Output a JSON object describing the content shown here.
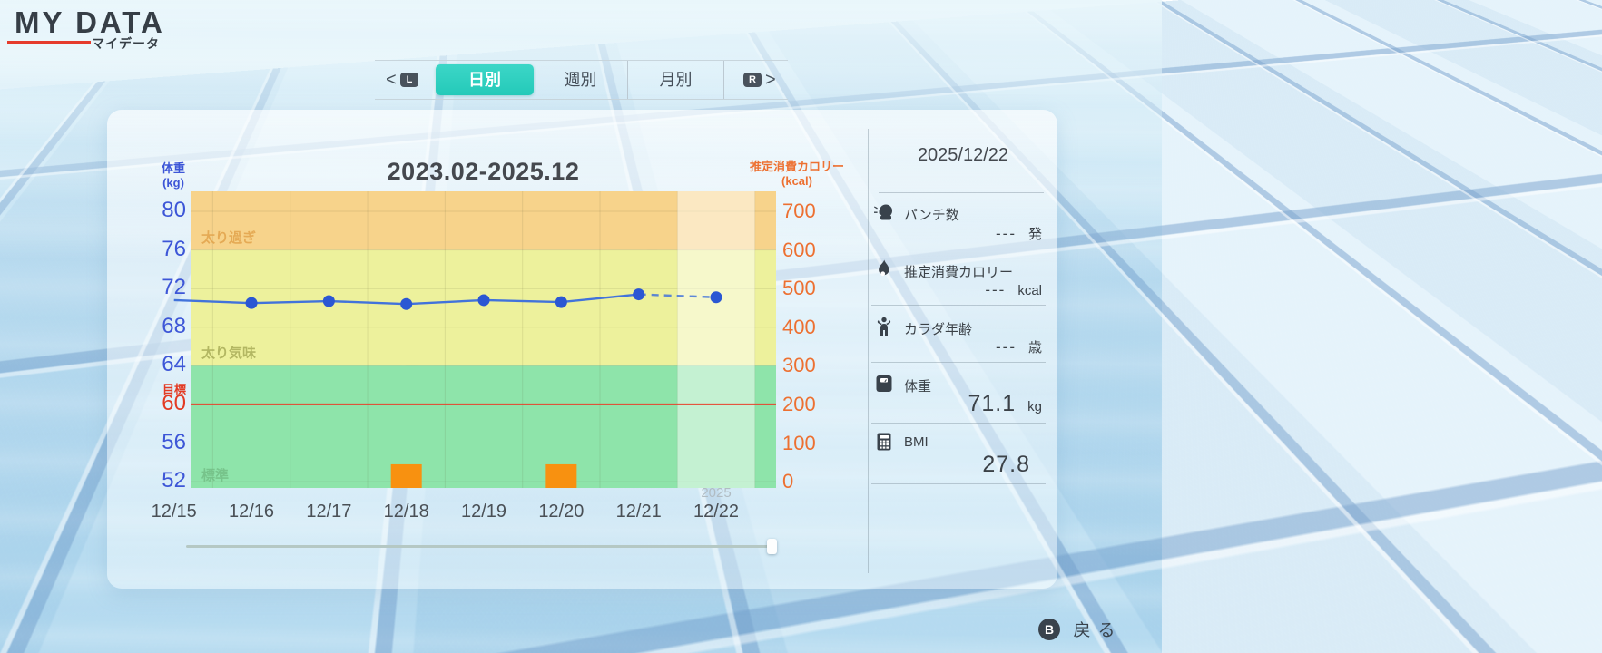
{
  "header": {
    "title": "MY DATA",
    "subtitle": "マイデータ"
  },
  "tab_bar": {
    "prev_arrow": "<",
    "l_button": "L",
    "tabs": [
      {
        "label": "日別",
        "selected": true
      },
      {
        "label": "週別",
        "selected": false
      },
      {
        "label": "月別",
        "selected": false
      }
    ],
    "r_button": "R",
    "next_arrow": ">"
  },
  "chart_data": {
    "type": "line",
    "title": "2023.02-2025.12",
    "left_axis": {
      "title": "体重",
      "unit": "(kg)",
      "ticks": [
        80,
        76,
        72,
        68,
        64,
        60,
        56,
        52
      ],
      "color": "#3d56d7"
    },
    "right_axis": {
      "title": "推定消費カロリー",
      "unit": "(kcal)",
      "ticks": [
        700,
        600,
        500,
        400,
        300,
        200,
        100,
        0
      ],
      "color": "#ed7031"
    },
    "goal": {
      "label": "目標",
      "value": 60,
      "color": "#e8402a"
    },
    "zones": [
      {
        "label": "太り過ぎ",
        "from": 76,
        "color": "#f7d38b",
        "label_color": "#e2a44c"
      },
      {
        "label": "太り気味",
        "from": 64,
        "color": "#edf19c",
        "label_color": "#a9ae58"
      },
      {
        "label": "標準",
        "from": null,
        "color": "#8ee4aa",
        "label_color": "#74bf86"
      }
    ],
    "x_categories": [
      "12/15",
      "12/16",
      "12/17",
      "12/18",
      "12/19",
      "12/20",
      "12/21",
      "12/22"
    ],
    "year_label": "2025",
    "selected_category": "12/22",
    "weight_axis_range": [
      51.35,
      82.07
    ],
    "kcal_mapping": {
      "kcal0_at_weight": 52,
      "kg_per_100kcal": 4
    },
    "series": [
      {
        "name": "体重(kg)",
        "type": "line",
        "color": "#4273db",
        "point_color": "#2b57d3",
        "values": [
          70.8,
          70.5,
          70.7,
          70.4,
          70.8,
          70.6,
          71.4,
          71.1
        ],
        "dashed_after_index": 6
      },
      {
        "name": "推定消費カロリー(kcal)",
        "type": "bar",
        "color": "#f89110",
        "values": [
          null,
          null,
          null,
          45,
          null,
          45,
          null,
          null
        ]
      }
    ],
    "grid": true
  },
  "detail_panel": {
    "date": "2025/12/22",
    "rows": [
      {
        "icon": "boxing-glove-icon",
        "label": "パンチ数",
        "value": "---",
        "unit": "発"
      },
      {
        "icon": "flame-icon",
        "label": "推定消費カロリー",
        "value": "---",
        "unit": "kcal"
      },
      {
        "icon": "body-age-icon",
        "label": "カラダ年齢",
        "value": "---",
        "unit": "歳"
      },
      {
        "icon": "weight-scale-icon",
        "label": "体重",
        "value": "71.1",
        "unit": "kg"
      },
      {
        "icon": "calculator-icon",
        "label": "BMI",
        "value": "27.8",
        "unit": ""
      }
    ]
  },
  "footer": {
    "button": "B",
    "label": "戻る"
  }
}
